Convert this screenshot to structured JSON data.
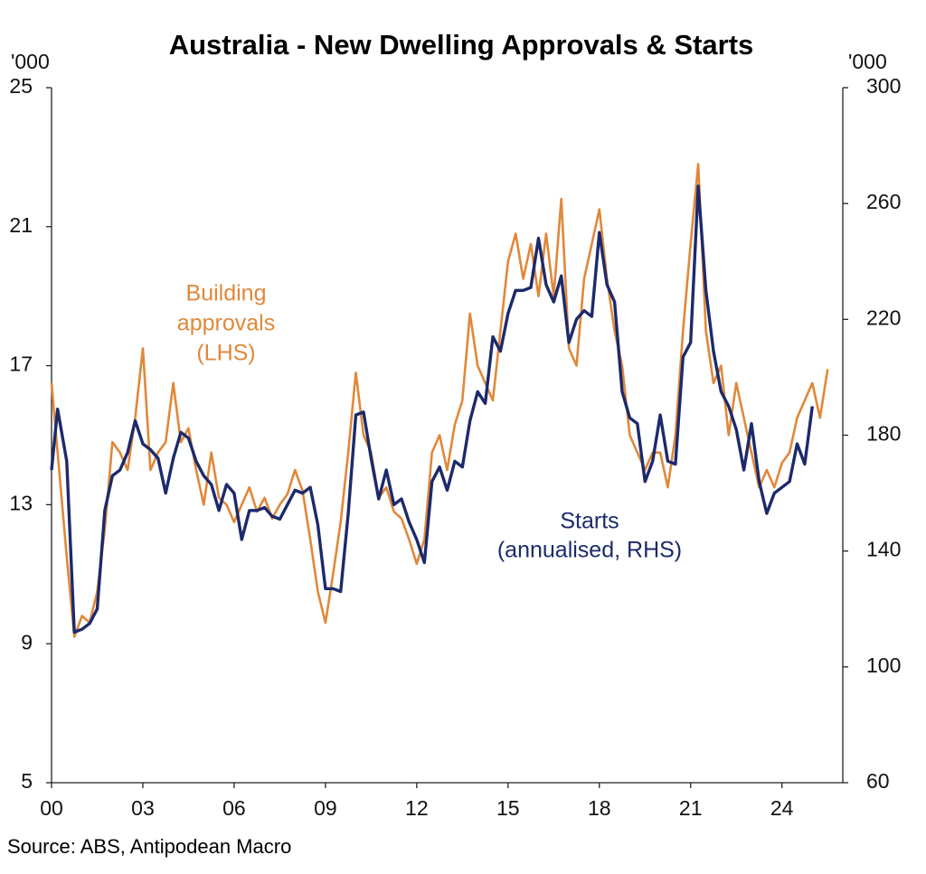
{
  "chart_data": {
    "type": "line",
    "title": "Australia - New Dwelling Approvals & Starts",
    "y_unit": "'000",
    "y2_unit": "'000",
    "source": "Source: ABS, Antipodean Macro",
    "xlim": [
      2000,
      2026
    ],
    "xticks": [
      {
        "value": 2000,
        "label": "00"
      },
      {
        "value": 2003,
        "label": "03"
      },
      {
        "value": 2006,
        "label": "06"
      },
      {
        "value": 2009,
        "label": "09"
      },
      {
        "value": 2012,
        "label": "12"
      },
      {
        "value": 2015,
        "label": "15"
      },
      {
        "value": 2018,
        "label": "18"
      },
      {
        "value": 2021,
        "label": "21"
      },
      {
        "value": 2024,
        "label": "24"
      }
    ],
    "ylim": [
      5,
      25
    ],
    "yticks": [
      5,
      9,
      13,
      17,
      21,
      25
    ],
    "y2lim": [
      60,
      300
    ],
    "y2ticks": [
      60,
      100,
      140,
      180,
      220,
      260,
      300
    ],
    "grid": false,
    "annotations": [
      {
        "lines": [
          "Building",
          "approvals",
          "(LHS)"
        ],
        "color": "#e0883a"
      },
      {
        "lines": [
          "Starts",
          "(annualised, RHS)"
        ],
        "color": "#1c2a6b"
      }
    ],
    "series": [
      {
        "color": "#e0883a",
        "axis": "y",
        "x": [
          2000,
          2000.25,
          2000.5,
          2000.75,
          2001,
          2001.25,
          2001.5,
          2001.75,
          2002,
          2002.25,
          2002.5,
          2002.75,
          2003,
          2003.25,
          2003.5,
          2003.75,
          2004,
          2004.25,
          2004.5,
          2004.75,
          2005,
          2005.25,
          2005.5,
          2005.75,
          2006,
          2006.25,
          2006.5,
          2006.75,
          2007,
          2007.25,
          2007.5,
          2007.75,
          2008,
          2008.25,
          2008.5,
          2008.75,
          2009,
          2009.25,
          2009.5,
          2009.75,
          2010,
          2010.25,
          2010.5,
          2010.75,
          2011,
          2011.25,
          2011.5,
          2011.75,
          2012,
          2012.25,
          2012.5,
          2012.75,
          2013,
          2013.25,
          2013.5,
          2013.75,
          2014,
          2014.25,
          2014.5,
          2014.75,
          2015,
          2015.25,
          2015.5,
          2015.75,
          2016,
          2016.25,
          2016.5,
          2016.75,
          2017,
          2017.25,
          2017.5,
          2017.75,
          2018,
          2018.25,
          2018.5,
          2018.75,
          2019,
          2019.25,
          2019.5,
          2019.75,
          2020,
          2020.25,
          2020.5,
          2020.75,
          2021,
          2021.25,
          2021.5,
          2021.75,
          2022,
          2022.25,
          2022.5,
          2022.75,
          2023,
          2023.25,
          2023.5,
          2023.75,
          2024,
          2024.25,
          2024.5,
          2024.75,
          2025,
          2025.25,
          2025.5
        ],
        "values": [
          16.5,
          14.0,
          11.5,
          9.2,
          9.8,
          9.6,
          10.5,
          12.3,
          14.8,
          14.5,
          14.0,
          15.5,
          17.5,
          14.0,
          14.5,
          14.8,
          16.5,
          14.8,
          15.2,
          14.0,
          13.0,
          14.5,
          13.2,
          13.0,
          12.5,
          13.0,
          13.5,
          12.8,
          13.2,
          12.6,
          13.0,
          13.3,
          14.0,
          13.4,
          12.0,
          10.5,
          9.6,
          11.0,
          12.5,
          14.5,
          16.8,
          15.0,
          14.5,
          13.2,
          13.5,
          12.8,
          12.6,
          12.0,
          11.3,
          12.0,
          14.5,
          15.0,
          14.0,
          15.3,
          16.0,
          18.5,
          17.0,
          16.5,
          16.0,
          18.0,
          20.0,
          20.8,
          19.5,
          20.5,
          19.0,
          20.8,
          19.0,
          21.8,
          17.5,
          17.0,
          19.5,
          20.5,
          21.5,
          19.5,
          18.0,
          17.0,
          15.0,
          14.5,
          14.0,
          14.5,
          14.5,
          13.5,
          15.0,
          18.0,
          20.5,
          22.8,
          18.0,
          16.5,
          17.0,
          15.0,
          16.5,
          15.5,
          14.5,
          13.5,
          14.0,
          13.5,
          14.2,
          14.5,
          15.5,
          16.0,
          16.5,
          15.5,
          16.9
        ]
      },
      {
        "color": "#1c2a6b",
        "axis": "y2",
        "x": [
          2000,
          2000.2,
          2000.5,
          2000.75,
          2001,
          2001.25,
          2001.5,
          2001.75,
          2002,
          2002.25,
          2002.5,
          2002.75,
          2003,
          2003.25,
          2003.5,
          2003.75,
          2004,
          2004.25,
          2004.5,
          2004.75,
          2005,
          2005.25,
          2005.5,
          2005.75,
          2006,
          2006.25,
          2006.5,
          2006.75,
          2007,
          2007.25,
          2007.5,
          2007.75,
          2008,
          2008.25,
          2008.5,
          2008.75,
          2009,
          2009.25,
          2009.5,
          2009.75,
          2010,
          2010.25,
          2010.5,
          2010.75,
          2011,
          2011.25,
          2011.5,
          2011.75,
          2012,
          2012.25,
          2012.5,
          2012.75,
          2013,
          2013.25,
          2013.5,
          2013.75,
          2014,
          2014.25,
          2014.5,
          2014.75,
          2015,
          2015.25,
          2015.5,
          2015.75,
          2016,
          2016.25,
          2016.5,
          2016.75,
          2017,
          2017.25,
          2017.5,
          2017.75,
          2018,
          2018.25,
          2018.5,
          2018.75,
          2019,
          2019.25,
          2019.5,
          2019.75,
          2020,
          2020.25,
          2020.5,
          2020.75,
          2021,
          2021.25,
          2021.5,
          2021.75,
          2022,
          2022.25,
          2022.5,
          2022.75,
          2023,
          2023.25,
          2023.5,
          2023.75,
          2024,
          2024.25,
          2024.5,
          2024.75,
          2025
        ],
        "values": [
          168,
          189,
          171,
          112,
          113,
          115,
          120,
          154,
          166,
          168,
          174,
          185,
          177,
          175,
          172,
          160,
          172,
          181,
          179,
          171,
          166,
          163,
          154,
          163,
          160,
          144,
          154,
          154,
          155,
          152,
          151,
          156,
          161,
          160,
          162,
          149,
          127,
          127,
          126,
          153,
          187,
          188,
          172,
          158,
          168,
          156,
          158,
          150,
          144,
          136,
          164,
          169,
          161,
          171,
          169,
          185,
          195,
          191,
          214,
          209,
          222,
          230,
          230,
          231,
          248,
          232,
          226,
          235,
          212,
          220,
          223,
          221,
          250,
          232,
          226,
          195,
          186,
          184,
          164,
          171,
          187,
          171,
          170,
          207,
          212,
          266,
          230,
          209,
          195,
          190,
          182,
          168,
          184,
          164,
          153,
          160,
          162,
          164,
          177,
          170,
          190
        ]
      }
    ]
  }
}
